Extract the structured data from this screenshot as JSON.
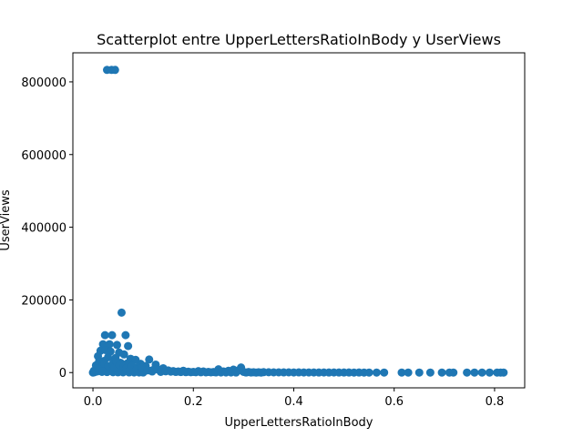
{
  "chart_data": {
    "type": "scatter",
    "title": "Scatterplot entre UpperLettersRatioInBody y UserViews",
    "xlabel": "UpperLettersRatioInBody",
    "ylabel": "UserViews",
    "xlim": [
      -0.04,
      0.86
    ],
    "ylim": [
      -42000,
      880000
    ],
    "xticks": [
      0.0,
      0.2,
      0.4,
      0.6,
      0.8
    ],
    "xtick_labels": [
      "0.0",
      "0.2",
      "0.4",
      "0.6",
      "0.8"
    ],
    "yticks": [
      0,
      200000,
      400000,
      600000,
      800000
    ],
    "ytick_labels": [
      "0",
      "200000",
      "400000",
      "600000",
      "800000"
    ],
    "grid": false,
    "marker_color": "#1f77b4",
    "series": [
      {
        "points": [
          [
            0.028,
            833000
          ],
          [
            0.037,
            833000
          ],
          [
            0.044,
            833000
          ],
          [
            0.057,
            165000
          ],
          [
            0.024,
            103000
          ],
          [
            0.038,
            103000
          ],
          [
            0.065,
            103000
          ],
          [
            0.02,
            78000
          ],
          [
            0.033,
            78000
          ],
          [
            0.048,
            76000
          ],
          [
            0.07,
            73000
          ],
          [
            0.015,
            60000
          ],
          [
            0.025,
            62000
          ],
          [
            0.035,
            58000
          ],
          [
            0.052,
            55000
          ],
          [
            0.062,
            50000
          ],
          [
            0.01,
            45000
          ],
          [
            0.03,
            42000
          ],
          [
            0.045,
            40000
          ],
          [
            0.075,
            38000
          ],
          [
            0.085,
            35000
          ],
          [
            0.012,
            30000
          ],
          [
            0.022,
            32000
          ],
          [
            0.041,
            28000
          ],
          [
            0.055,
            27000
          ],
          [
            0.068,
            25000
          ],
          [
            0.095,
            24000
          ],
          [
            0.112,
            36000
          ],
          [
            0.125,
            22000
          ],
          [
            0.105,
            18000
          ],
          [
            0.09,
            15000
          ],
          [
            0.08,
            12000
          ],
          [
            0.006,
            20000
          ],
          [
            0.016,
            15000
          ],
          [
            0.026,
            12000
          ],
          [
            0.036,
            10000
          ],
          [
            0.046,
            8000
          ],
          [
            0.058,
            6000
          ],
          [
            0.002,
            5000
          ],
          [
            0.008,
            3000
          ],
          [
            0.018,
            2000
          ],
          [
            0.028,
            1500
          ],
          [
            0.04,
            1000
          ],
          [
            0.05,
            800
          ],
          [
            0.06,
            600
          ],
          [
            0.072,
            500
          ],
          [
            0.082,
            400
          ],
          [
            0.092,
            300
          ],
          [
            0.1,
            200
          ],
          [
            0.0,
            100
          ],
          [
            0.115,
            5000
          ],
          [
            0.13,
            8000
          ],
          [
            0.14,
            12000
          ],
          [
            0.15,
            6000
          ],
          [
            0.16,
            4000
          ],
          [
            0.17,
            3000
          ],
          [
            0.18,
            5000
          ],
          [
            0.19,
            2500
          ],
          [
            0.2,
            2000
          ],
          [
            0.21,
            4000
          ],
          [
            0.22,
            3000
          ],
          [
            0.23,
            2000
          ],
          [
            0.24,
            1500
          ],
          [
            0.25,
            9000
          ],
          [
            0.26,
            3000
          ],
          [
            0.27,
            5000
          ],
          [
            0.28,
            8000
          ],
          [
            0.29,
            6000
          ],
          [
            0.295,
            14000
          ],
          [
            0.3,
            2000
          ],
          [
            0.31,
            1500
          ],
          [
            0.32,
            1000
          ],
          [
            0.33,
            800
          ],
          [
            0.34,
            1200
          ],
          [
            0.35,
            900
          ],
          [
            0.36,
            600
          ],
          [
            0.37,
            700
          ],
          [
            0.38,
            500
          ],
          [
            0.39,
            600
          ],
          [
            0.4,
            400
          ],
          [
            0.41,
            500
          ],
          [
            0.42,
            300
          ],
          [
            0.43,
            400
          ],
          [
            0.44,
            300
          ],
          [
            0.45,
            200
          ],
          [
            0.46,
            300
          ],
          [
            0.47,
            200
          ],
          [
            0.48,
            300
          ],
          [
            0.49,
            200
          ],
          [
            0.5,
            150
          ],
          [
            0.51,
            200
          ],
          [
            0.52,
            100
          ],
          [
            0.53,
            150
          ],
          [
            0.54,
            100
          ],
          [
            0.55,
            120
          ],
          [
            0.565,
            80
          ],
          [
            0.58,
            100
          ],
          [
            0.615,
            80
          ],
          [
            0.628,
            60
          ],
          [
            0.65,
            50
          ],
          [
            0.672,
            40
          ],
          [
            0.695,
            50
          ],
          [
            0.71,
            40
          ],
          [
            0.718,
            30
          ],
          [
            0.745,
            40
          ],
          [
            0.76,
            30
          ],
          [
            0.775,
            20
          ],
          [
            0.79,
            30
          ],
          [
            0.805,
            20
          ],
          [
            0.812,
            10
          ],
          [
            0.818,
            20
          ],
          [
            0.003,
            1000
          ],
          [
            0.005,
            7000
          ],
          [
            0.009,
            12000
          ],
          [
            0.013,
            9000
          ],
          [
            0.019,
            4000
          ],
          [
            0.023,
            25000
          ],
          [
            0.031,
            18000
          ],
          [
            0.039,
            22000
          ],
          [
            0.043,
            14000
          ],
          [
            0.047,
            30000
          ],
          [
            0.053,
            20000
          ],
          [
            0.061,
            16000
          ],
          [
            0.066,
            11000
          ],
          [
            0.074,
            7000
          ],
          [
            0.078,
            18000
          ],
          [
            0.087,
            9000
          ],
          [
            0.097,
            13000
          ],
          [
            0.108,
            6000
          ],
          [
            0.118,
            3000
          ],
          [
            0.122,
            9000
          ],
          [
            0.135,
            2000
          ],
          [
            0.145,
            3500
          ],
          [
            0.155,
            2500
          ],
          [
            0.165,
            1800
          ],
          [
            0.175,
            1500
          ],
          [
            0.185,
            1200
          ],
          [
            0.195,
            1000
          ],
          [
            0.205,
            900
          ],
          [
            0.215,
            800
          ],
          [
            0.225,
            700
          ],
          [
            0.235,
            600
          ],
          [
            0.245,
            500
          ],
          [
            0.255,
            400
          ],
          [
            0.265,
            350
          ],
          [
            0.275,
            300
          ],
          [
            0.285,
            250
          ],
          [
            0.305,
            200
          ],
          [
            0.315,
            150
          ],
          [
            0.325,
            100
          ],
          [
            0.335,
            80
          ]
        ]
      }
    ]
  }
}
